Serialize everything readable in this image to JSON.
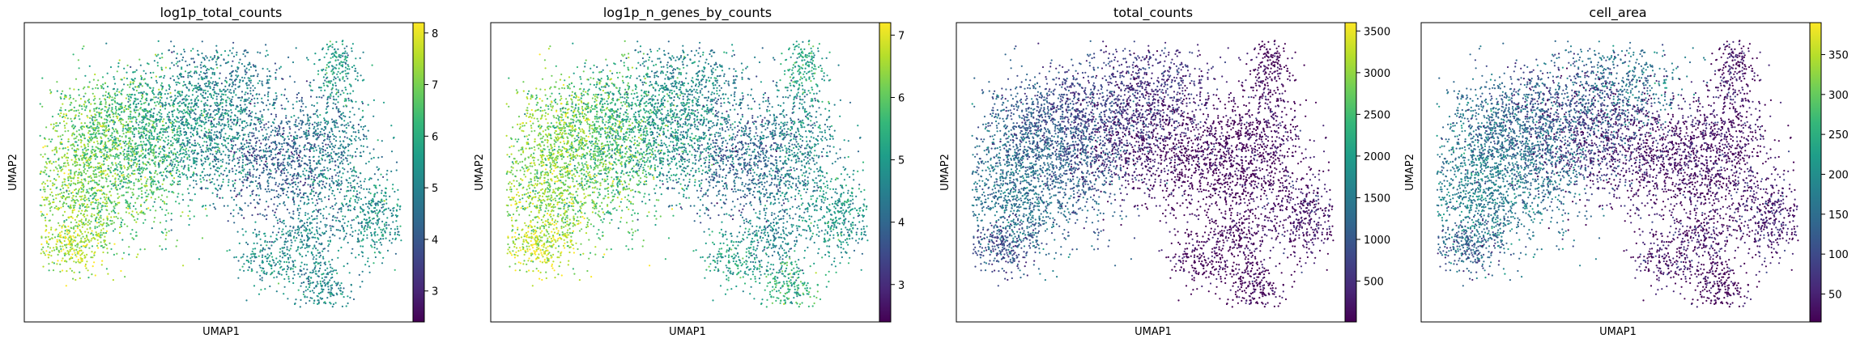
{
  "chart_data": [
    {
      "type": "scatter",
      "title": "log1p_total_counts",
      "xlabel": "UMAP1",
      "ylabel": "UMAP2",
      "colormap": "viridis",
      "colorbar": {
        "range": [
          2.4,
          8.2
        ],
        "ticks": [
          3,
          4,
          5,
          6,
          7,
          8
        ],
        "tick_labels": [
          "3",
          "4",
          "5",
          "6",
          "7",
          "8"
        ]
      },
      "grid": false,
      "legend": "colorbar-right"
    },
    {
      "type": "scatter",
      "title": "log1p_n_genes_by_counts",
      "xlabel": "UMAP1",
      "ylabel": "UMAP2",
      "colormap": "viridis",
      "colorbar": {
        "range": [
          2.4,
          7.2
        ],
        "ticks": [
          3,
          4,
          5,
          6,
          7
        ],
        "tick_labels": [
          "3",
          "4",
          "5",
          "6",
          "7"
        ]
      },
      "grid": false,
      "legend": "colorbar-right"
    },
    {
      "type": "scatter",
      "title": "total_counts",
      "xlabel": "UMAP1",
      "ylabel": "UMAP2",
      "colormap": "viridis",
      "colorbar": {
        "range": [
          10,
          3600
        ],
        "ticks": [
          500,
          1000,
          1500,
          2000,
          2500,
          3000,
          3500
        ],
        "tick_labels": [
          "500",
          "1000",
          "1500",
          "2000",
          "2500",
          "3000",
          "3500"
        ]
      },
      "grid": false,
      "legend": "colorbar-right"
    },
    {
      "type": "scatter",
      "title": "cell_area",
      "xlabel": "UMAP1",
      "ylabel": "UMAP2",
      "colormap": "viridis",
      "colorbar": {
        "range": [
          15,
          390
        ],
        "ticks": [
          50,
          100,
          150,
          200,
          250,
          300,
          350
        ],
        "tick_labels": [
          "50",
          "100",
          "150",
          "200",
          "250",
          "300",
          "350"
        ]
      },
      "grid": false,
      "legend": "colorbar-right"
    }
  ],
  "colors": {
    "viridis": [
      "#440154",
      "#482878",
      "#3e4989",
      "#31688e",
      "#26828e",
      "#1f9e89",
      "#35b779",
      "#6ece58",
      "#b5de2b",
      "#fde725"
    ]
  }
}
